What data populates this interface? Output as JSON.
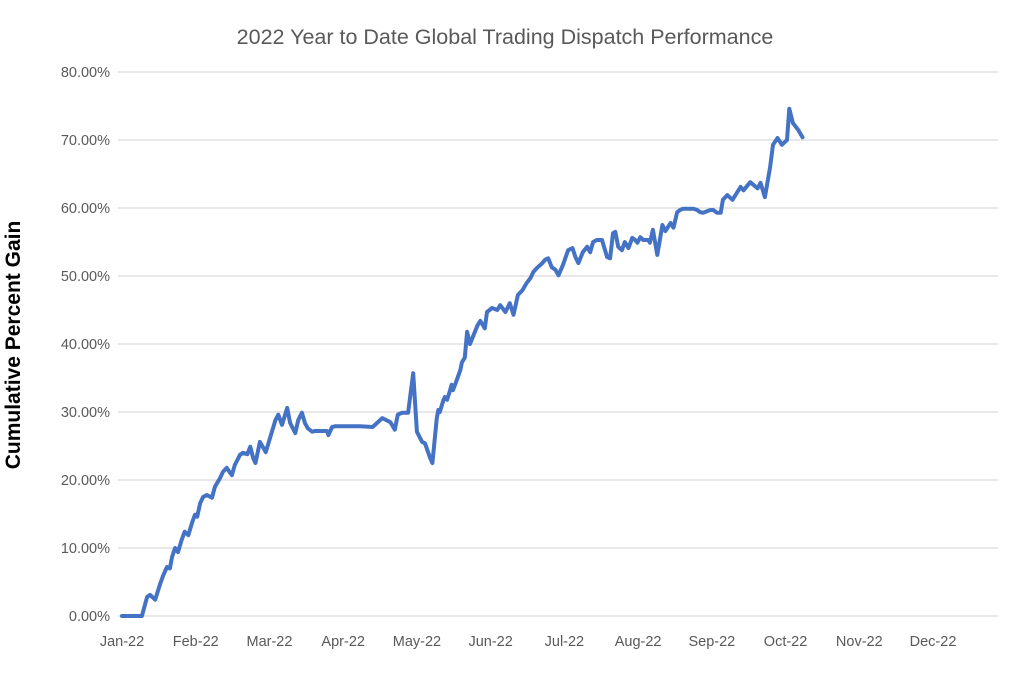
{
  "chart_data": {
    "type": "line",
    "title": "2022 Year to Date Global Trading Dispatch Performance",
    "xlabel": "",
    "ylabel": "Cumulative Percent Gain",
    "x_tick_labels": [
      "Jan-22",
      "Feb-22",
      "Mar-22",
      "Apr-22",
      "May-22",
      "Jun-22",
      "Jul-22",
      "Aug-22",
      "Sep-22",
      "Oct-22",
      "Nov-22",
      "Dec-22"
    ],
    "y_tick_labels": [
      "0.00%",
      "10.00%",
      "20.00%",
      "30.00%",
      "40.00%",
      "50.00%",
      "60.00%",
      "70.00%",
      "80.00%"
    ],
    "y_tick_values": [
      0,
      10,
      20,
      30,
      40,
      50,
      60,
      70,
      80
    ],
    "ylim": [
      0,
      80
    ],
    "xlim_months": [
      0,
      11
    ],
    "grid": "horizontal-only",
    "legend": "none",
    "x_axis_note": "x values are months after the Jan-22 tick (0=Jan-22, 9=Oct-22); data ends mid-October",
    "colors": {
      "line": "#4472C4",
      "gridline": "#D9D9D9",
      "title_text": "#595959",
      "tick_text": "#595959",
      "y_axis_title_text": "#000000",
      "background": "#FFFFFF"
    },
    "series": [
      {
        "name": "Cumulative Percent Gain",
        "points_month_pct": [
          [
            0.0,
            0.0
          ],
          [
            0.14,
            0.0
          ],
          [
            0.27,
            0.0
          ],
          [
            0.34,
            2.8
          ],
          [
            0.38,
            3.1
          ],
          [
            0.45,
            2.4
          ],
          [
            0.52,
            4.8
          ],
          [
            0.56,
            6.0
          ],
          [
            0.61,
            7.2
          ],
          [
            0.65,
            7.0
          ],
          [
            0.68,
            8.7
          ],
          [
            0.72,
            10.0
          ],
          [
            0.76,
            9.4
          ],
          [
            0.81,
            11.2
          ],
          [
            0.85,
            12.4
          ],
          [
            0.9,
            11.9
          ],
          [
            0.95,
            13.7
          ],
          [
            0.99,
            14.9
          ],
          [
            1.02,
            14.6
          ],
          [
            1.06,
            16.6
          ],
          [
            1.1,
            17.5
          ],
          [
            1.15,
            17.8
          ],
          [
            1.22,
            17.4
          ],
          [
            1.26,
            19.0
          ],
          [
            1.33,
            20.3
          ],
          [
            1.37,
            21.2
          ],
          [
            1.42,
            21.8
          ],
          [
            1.47,
            21.0
          ],
          [
            1.49,
            20.7
          ],
          [
            1.53,
            22.2
          ],
          [
            1.6,
            23.7
          ],
          [
            1.64,
            24.0
          ],
          [
            1.7,
            23.8
          ],
          [
            1.74,
            24.9
          ],
          [
            1.78,
            23.2
          ],
          [
            1.81,
            22.5
          ],
          [
            1.87,
            25.6
          ],
          [
            1.95,
            24.1
          ],
          [
            2.08,
            28.8
          ],
          [
            2.12,
            29.6
          ],
          [
            2.17,
            28.1
          ],
          [
            2.24,
            30.6
          ],
          [
            2.28,
            28.4
          ],
          [
            2.35,
            26.9
          ],
          [
            2.39,
            28.8
          ],
          [
            2.44,
            29.9
          ],
          [
            2.48,
            28.4
          ],
          [
            2.52,
            27.6
          ],
          [
            2.58,
            27.1
          ],
          [
            2.62,
            27.2
          ],
          [
            2.78,
            27.2
          ],
          [
            2.8,
            26.6
          ],
          [
            2.85,
            27.8
          ],
          [
            2.89,
            27.9
          ],
          [
            3.23,
            27.9
          ],
          [
            3.4,
            27.8
          ],
          [
            3.53,
            29.1
          ],
          [
            3.64,
            28.5
          ],
          [
            3.7,
            27.4
          ],
          [
            3.74,
            29.6
          ],
          [
            3.8,
            29.9
          ],
          [
            3.88,
            29.9
          ],
          [
            3.95,
            35.7
          ],
          [
            4.0,
            27.1
          ],
          [
            4.07,
            25.6
          ],
          [
            4.11,
            25.4
          ],
          [
            4.18,
            23.2
          ],
          [
            4.21,
            22.5
          ],
          [
            4.27,
            29.1
          ],
          [
            4.29,
            30.3
          ],
          [
            4.31,
            30.0
          ],
          [
            4.36,
            31.8
          ],
          [
            4.38,
            32.2
          ],
          [
            4.41,
            31.8
          ],
          [
            4.45,
            33.2
          ],
          [
            4.47,
            34.0
          ],
          [
            4.49,
            33.2
          ],
          [
            4.55,
            35.0
          ],
          [
            4.59,
            36.2
          ],
          [
            4.61,
            37.3
          ],
          [
            4.65,
            38.0
          ],
          [
            4.68,
            41.8
          ],
          [
            4.72,
            40.0
          ],
          [
            4.82,
            42.7
          ],
          [
            4.86,
            43.4
          ],
          [
            4.92,
            42.3
          ],
          [
            4.95,
            44.7
          ],
          [
            5.02,
            45.3
          ],
          [
            5.09,
            45.0
          ],
          [
            5.13,
            45.7
          ],
          [
            5.2,
            44.7
          ],
          [
            5.26,
            46.0
          ],
          [
            5.31,
            44.3
          ],
          [
            5.37,
            47.2
          ],
          [
            5.43,
            47.9
          ],
          [
            5.49,
            49.0
          ],
          [
            5.54,
            49.7
          ],
          [
            5.58,
            50.6
          ],
          [
            5.63,
            51.2
          ],
          [
            5.7,
            51.9
          ],
          [
            5.74,
            52.4
          ],
          [
            5.78,
            52.6
          ],
          [
            5.83,
            51.3
          ],
          [
            5.88,
            50.9
          ],
          [
            5.92,
            50.1
          ],
          [
            5.98,
            51.6
          ],
          [
            6.05,
            53.8
          ],
          [
            6.11,
            54.1
          ],
          [
            6.15,
            52.8
          ],
          [
            6.19,
            51.9
          ],
          [
            6.25,
            53.5
          ],
          [
            6.31,
            54.3
          ],
          [
            6.35,
            53.5
          ],
          [
            6.39,
            55.0
          ],
          [
            6.44,
            55.3
          ],
          [
            6.51,
            55.3
          ],
          [
            6.58,
            52.8
          ],
          [
            6.62,
            52.6
          ],
          [
            6.66,
            56.3
          ],
          [
            6.69,
            56.5
          ],
          [
            6.73,
            54.3
          ],
          [
            6.78,
            53.8
          ],
          [
            6.82,
            55.0
          ],
          [
            6.87,
            54.1
          ],
          [
            6.92,
            55.6
          ],
          [
            6.96,
            55.3
          ],
          [
            6.99,
            54.9
          ],
          [
            7.03,
            55.7
          ],
          [
            7.07,
            55.3
          ],
          [
            7.14,
            55.3
          ],
          [
            7.16,
            54.9
          ],
          [
            7.2,
            56.8
          ],
          [
            7.26,
            53.1
          ],
          [
            7.33,
            57.5
          ],
          [
            7.37,
            56.6
          ],
          [
            7.44,
            57.8
          ],
          [
            7.48,
            57.1
          ],
          [
            7.53,
            59.4
          ],
          [
            7.57,
            59.7
          ],
          [
            7.61,
            59.9
          ],
          [
            7.75,
            59.9
          ],
          [
            7.8,
            59.7
          ],
          [
            7.84,
            59.4
          ],
          [
            7.88,
            59.3
          ],
          [
            7.98,
            59.7
          ],
          [
            8.02,
            59.7
          ],
          [
            8.07,
            59.3
          ],
          [
            8.12,
            59.3
          ],
          [
            8.15,
            61.2
          ],
          [
            8.21,
            61.9
          ],
          [
            8.28,
            61.2
          ],
          [
            8.39,
            63.1
          ],
          [
            8.43,
            62.6
          ],
          [
            8.52,
            63.8
          ],
          [
            8.62,
            62.9
          ],
          [
            8.66,
            63.7
          ],
          [
            8.72,
            61.6
          ],
          [
            8.79,
            66.0
          ],
          [
            8.83,
            69.3
          ],
          [
            8.89,
            70.3
          ],
          [
            8.95,
            69.3
          ],
          [
            9.02,
            70.0
          ],
          [
            9.05,
            74.6
          ],
          [
            9.1,
            72.5
          ],
          [
            9.17,
            71.5
          ],
          [
            9.23,
            70.4
          ]
        ]
      }
    ]
  }
}
